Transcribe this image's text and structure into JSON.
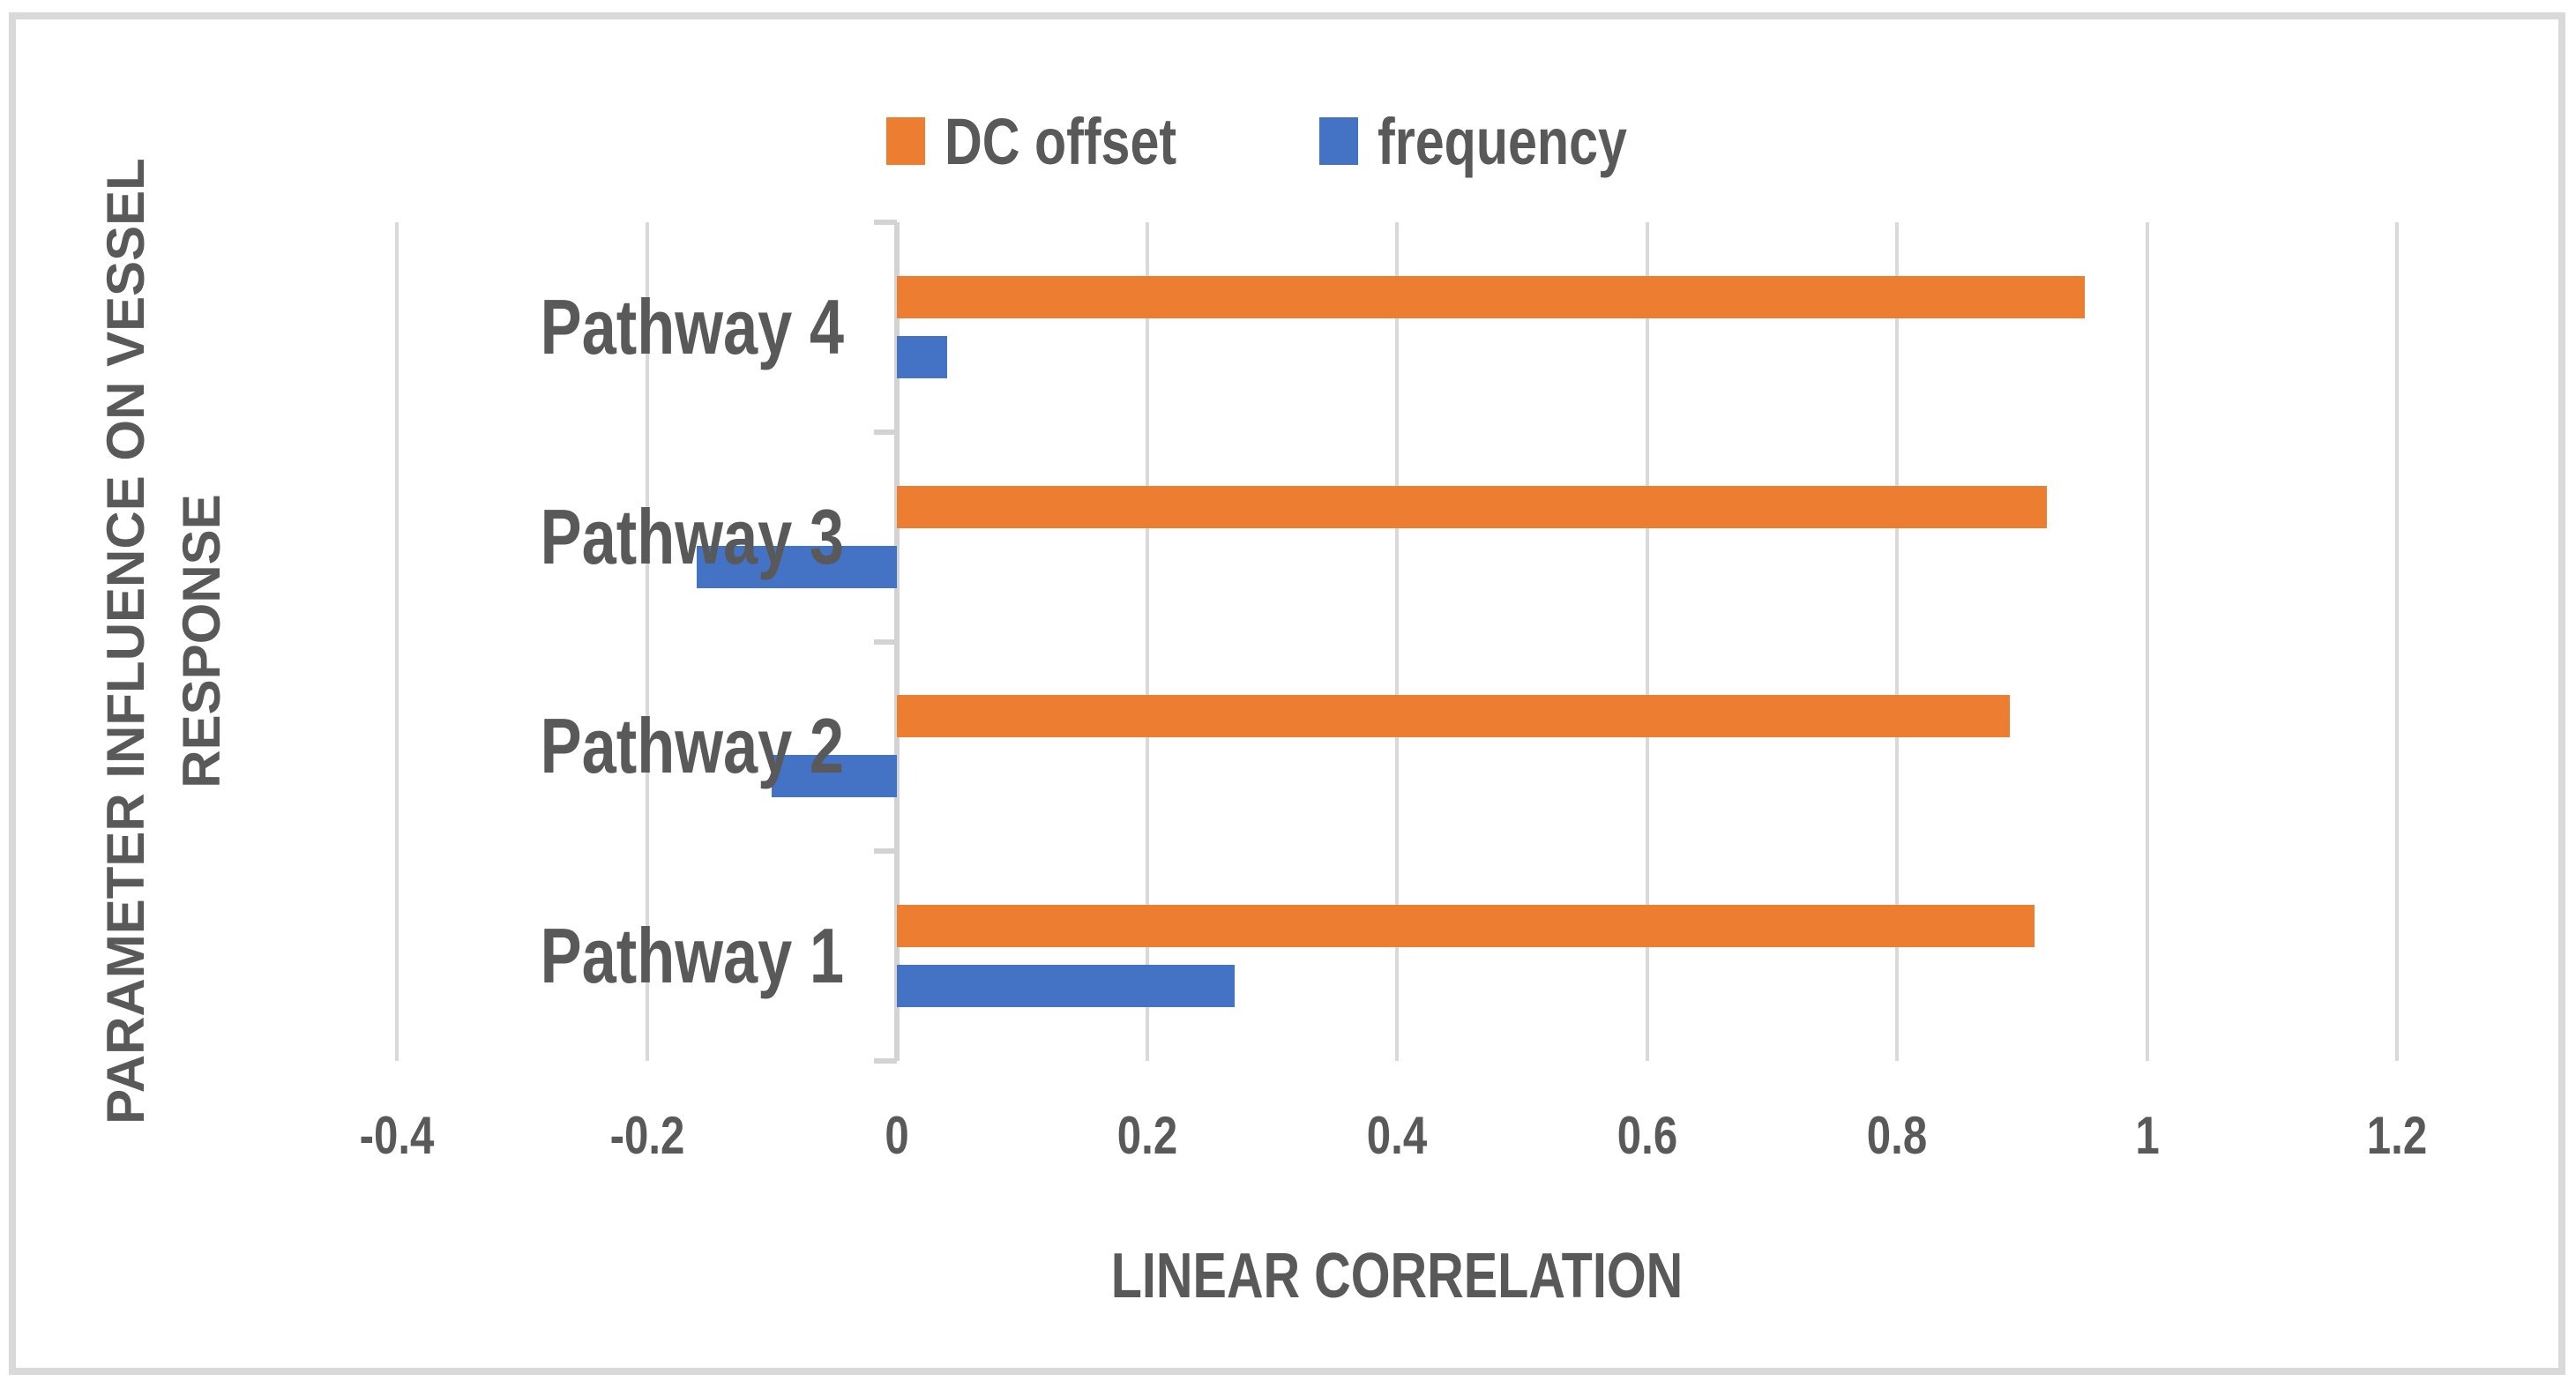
{
  "chart_data": {
    "type": "bar",
    "orientation": "horizontal",
    "title": "",
    "categories": [
      "Pathway 1",
      "Pathway 2",
      "Pathway 3",
      "Pathway 4"
    ],
    "series": [
      {
        "name": "DC offset",
        "color": "#ED7D31",
        "values": [
          0.91,
          0.89,
          0.92,
          0.95
        ]
      },
      {
        "name": "frequency",
        "color": "#4472C4",
        "values": [
          0.27,
          -0.1,
          -0.16,
          0.04
        ]
      }
    ],
    "xlabel": "LINEAR CORRELATION",
    "ylabel": "PARAMETER INFLUENCE ON VESSEL RESPONSE",
    "xlim": [
      -0.4,
      1.2
    ],
    "xticks": [
      -0.4,
      -0.2,
      0,
      0.2,
      0.4,
      0.6,
      0.8,
      1,
      1.2
    ],
    "xtick_labels": [
      "-0.4",
      "-0.2",
      "0",
      "0.2",
      "0.4",
      "0.6",
      "0.8",
      "1",
      "1.2"
    ],
    "grid": "vertical",
    "legend_position": "top-center",
    "category_display_order_top_to_bottom": [
      "Pathway 4",
      "Pathway 3",
      "Pathway 2",
      "Pathway 1"
    ]
  },
  "legend": {
    "items": [
      {
        "label": "DC offset",
        "color": "#ED7D31"
      },
      {
        "label": "frequency",
        "color": "#4472C4"
      }
    ]
  },
  "axis": {
    "x_title": "LINEAR CORRELATION",
    "y_title_line1": "PARAMETER INFLUENCE ON VESSEL",
    "y_title_line2": "RESPONSE"
  },
  "colors": {
    "bar_orange": "#ED7D31",
    "bar_blue": "#4472C4",
    "gridline": "#D9D9D9",
    "axis_line": "#D3D3D3",
    "text": "#595959",
    "frame_border": "#D9D9D9",
    "background": "#FFFFFF"
  }
}
